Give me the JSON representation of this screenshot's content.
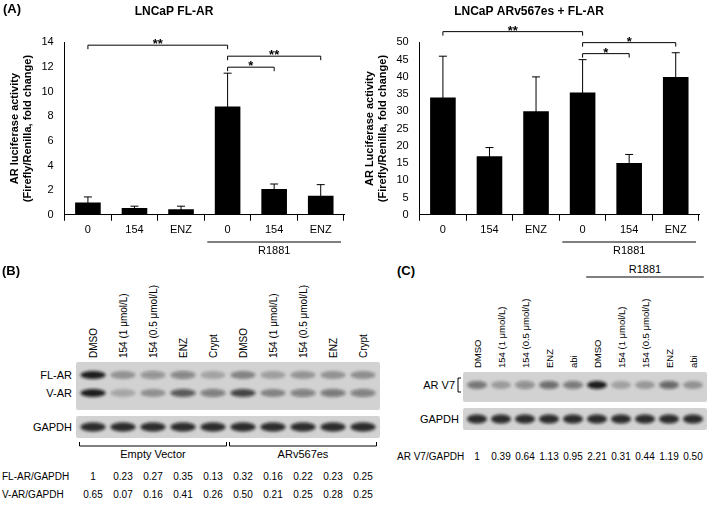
{
  "panel_labels": [
    "(A)",
    "(B)",
    "(C)"
  ],
  "chart_data": [
    {
      "type": "bar",
      "title": "LNCaP FL-AR",
      "y_label": "AR luciferase activity\n(Firefly/Renilla, fold change)",
      "categories": [
        "0",
        "154",
        "ENZ",
        "0",
        "154",
        "ENZ"
      ],
      "category_groups": [
        {
          "label": "R1881",
          "from": 3,
          "to": 5
        }
      ],
      "values": [
        1.0,
        0.55,
        0.45,
        8.8,
        2.1,
        1.55
      ],
      "errors": [
        0.45,
        0.15,
        0.25,
        2.7,
        0.4,
        0.9
      ],
      "color": "#000000",
      "ylim": [
        0,
        14
      ],
      "yticks": [
        0,
        2,
        4,
        6,
        8,
        10,
        12,
        14
      ],
      "grid": false,
      "annotations": [
        {
          "text": "*",
          "from": 3,
          "to": 4
        },
        {
          "text": "**",
          "from": 3,
          "to": 5
        },
        {
          "text": "**",
          "from": 0,
          "to": 3
        }
      ]
    },
    {
      "type": "bar",
      "title": "LNCaP ARv567es + FL-AR",
      "y_label": "AR Luciferase activity\n(Firefly/Renilla, fold change)",
      "categories": [
        "0",
        "154",
        "ENZ",
        "0",
        "154",
        "ENZ"
      ],
      "category_groups": [
        {
          "label": "R1881",
          "from": 3,
          "to": 5
        }
      ],
      "values": [
        34,
        17,
        30,
        35.5,
        15,
        40
      ],
      "errors": [
        12,
        2.5,
        10,
        9.5,
        2.5,
        7
      ],
      "color": "#000000",
      "ylim": [
        0,
        50
      ],
      "yticks": [
        0,
        5,
        10,
        15,
        20,
        25,
        30,
        35,
        40,
        45,
        50
      ],
      "grid": false,
      "annotations": [
        {
          "text": "*",
          "from": 3,
          "to": 4
        },
        {
          "text": "*",
          "from": 3,
          "to": 5
        },
        {
          "text": "**",
          "from": 0,
          "to": 3
        }
      ]
    }
  ],
  "blots": [
    {
      "lanes": [
        "DMSO",
        "154 (1 μmol/L)",
        "154 (0.5 μmol/L)",
        "ENZ",
        "Crypt",
        "DMSO",
        "154 (1 μmol/L)",
        "154 (0.5 μmol/L)",
        "ENZ",
        "Crypt"
      ],
      "bands": [
        "FL-AR",
        "V-AR"
      ],
      "loading_control": "GAPDH",
      "groups": [
        {
          "label": "Empty Vector",
          "from": 0,
          "to": 4
        },
        {
          "label": "ARv567es",
          "from": 5,
          "to": 9
        }
      ],
      "quantification": [
        {
          "label": "FL-AR/GAPDH",
          "values": [
            "1",
            "0.23",
            "0.27",
            "0.35",
            "0.13",
            "0.32",
            "0.16",
            "0.22",
            "0.23",
            "0.25"
          ]
        },
        {
          "label": "V-AR/GAPDH",
          "values": [
            "0.65",
            "0.07",
            "0.16",
            "0.41",
            "0.26",
            "0.50",
            "0.21",
            "0.25",
            "0.28",
            "0.25"
          ]
        }
      ]
    },
    {
      "lanes": [
        "DMSO",
        "154 (1 μmol/L)",
        "154 (0.5 μmol/L)",
        "ENZ",
        "abi",
        "DMSO",
        "154 (1 μmol/L)",
        "154 (0.5 μmol/L)",
        "ENZ",
        "abi"
      ],
      "bands": [
        "AR V7"
      ],
      "loading_control": "GAPDH",
      "groups": [
        {
          "label": "R1881",
          "from": 5,
          "to": 9
        }
      ],
      "quantification": [
        {
          "label": "AR V7/GAPDH",
          "values": [
            "1",
            "0.39",
            "0.64",
            "1.13",
            "0.95",
            "2.21",
            "0.31",
            "0.44",
            "1.19",
            "0.50"
          ]
        }
      ]
    }
  ]
}
